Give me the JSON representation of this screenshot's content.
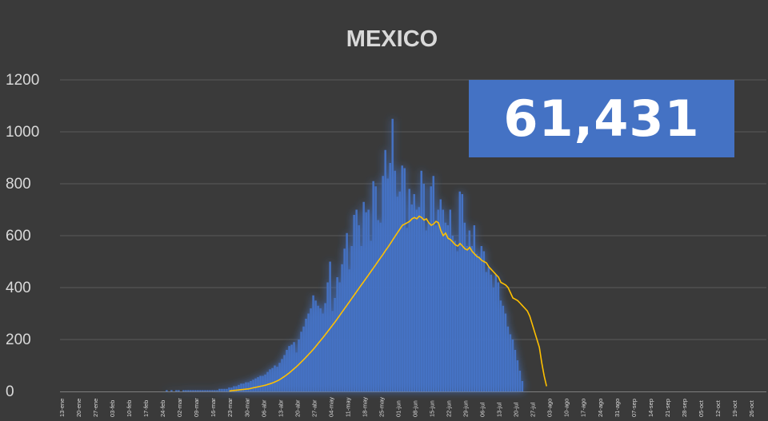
{
  "colors": {
    "background": "#3a3a3a",
    "bar": "#4472c4",
    "bar_glow": "#5b8cff",
    "line": "#ffc000",
    "grid": "#595959",
    "text": "#d9d9d9",
    "badge": "#4472c4"
  },
  "total_badge": "61,431",
  "chart_data": {
    "type": "bar",
    "title": "MEXICO",
    "xlabel": "",
    "ylabel": "",
    "ylim": [
      0,
      1200
    ],
    "yticks": [
      0,
      200,
      400,
      600,
      800,
      1000,
      1200
    ],
    "grid": true,
    "x_tick_labels": [
      "13-ene",
      "20-ene",
      "27-ene",
      "03-feb",
      "10-feb",
      "17-feb",
      "24-feb",
      "02-mar",
      "09-mar",
      "16-mar",
      "23-mar",
      "30-mar",
      "06-abr",
      "13-abr",
      "20-abr",
      "27-abr",
      "04-may",
      "11-may",
      "18-may",
      "25-may",
      "01-jun",
      "08-jun",
      "15-jun",
      "22-jun",
      "29-jun",
      "06-jul",
      "13-jul",
      "20-jul",
      "27-jul",
      "03-ago",
      "10-ago",
      "17-ago",
      "24-ago",
      "31-ago",
      "07-sep",
      "14-sep",
      "21-sep",
      "28-sep",
      "05-oct",
      "12-oct",
      "19-oct",
      "26-oct"
    ],
    "series": [
      {
        "kind": "bar",
        "start_day": 44,
        "values": [
          5,
          0,
          5,
          0,
          5,
          5,
          0,
          5,
          5,
          5,
          5,
          5,
          5,
          5,
          5,
          5,
          5,
          5,
          5,
          5,
          5,
          5,
          10,
          10,
          10,
          10,
          15,
          15,
          20,
          20,
          25,
          30,
          30,
          35,
          35,
          40,
          45,
          50,
          55,
          60,
          60,
          65,
          75,
          85,
          90,
          100,
          95,
          110,
          125,
          140,
          160,
          175,
          180,
          190,
          150,
          200,
          230,
          250,
          280,
          300,
          320,
          370,
          350,
          330,
          320,
          300,
          340,
          420,
          500,
          310,
          360,
          440,
          420,
          490,
          550,
          610,
          470,
          560,
          680,
          700,
          640,
          560,
          730,
          690,
          700,
          580,
          810,
          790,
          660,
          650,
          830,
          930,
          820,
          880,
          1050,
          850,
          750,
          770,
          870,
          860,
          630,
          780,
          720,
          760,
          700,
          710,
          850,
          800,
          620,
          650,
          790,
          830,
          640,
          700,
          740,
          700,
          650,
          640,
          700,
          600,
          580,
          540,
          770,
          760,
          650,
          560,
          620,
          560,
          640,
          530,
          520,
          560,
          540,
          460,
          480,
          450,
          400,
          450,
          420,
          350,
          330,
          300,
          250,
          220,
          200,
          160,
          120,
          80,
          40
        ]
      },
      {
        "kind": "line",
        "start_day": 70,
        "values": [
          2,
          3,
          4,
          5,
          6,
          7,
          8,
          9,
          10,
          12,
          14,
          16,
          18,
          20,
          22,
          24,
          27,
          30,
          33,
          37,
          41,
          46,
          52,
          58,
          65,
          72,
          80,
          88,
          96,
          105,
          114,
          123,
          133,
          143,
          153,
          163,
          174,
          186,
          197,
          208,
          220,
          232,
          244,
          256,
          268,
          281,
          294,
          307,
          320,
          333,
          346,
          359,
          372,
          385,
          398,
          411,
          424,
          437,
          450,
          463,
          476,
          489,
          503,
          516,
          529,
          543,
          556,
          570,
          584,
          598,
          612,
          626,
          640,
          645,
          650,
          655,
          665,
          670,
          665,
          675,
          670,
          660,
          665,
          650,
          640,
          645,
          655,
          650,
          620,
          600,
          610,
          590,
          585,
          575,
          565,
          560,
          570,
          560,
          550,
          545,
          555,
          540,
          530,
          520,
          515,
          505,
          500,
          495,
          480,
          470,
          460,
          450,
          440,
          420,
          415,
          410,
          400,
          380,
          360,
          355,
          350,
          340,
          330,
          320,
          310,
          290,
          260,
          230,
          200,
          170,
          110,
          60,
          20
        ]
      }
    ]
  }
}
